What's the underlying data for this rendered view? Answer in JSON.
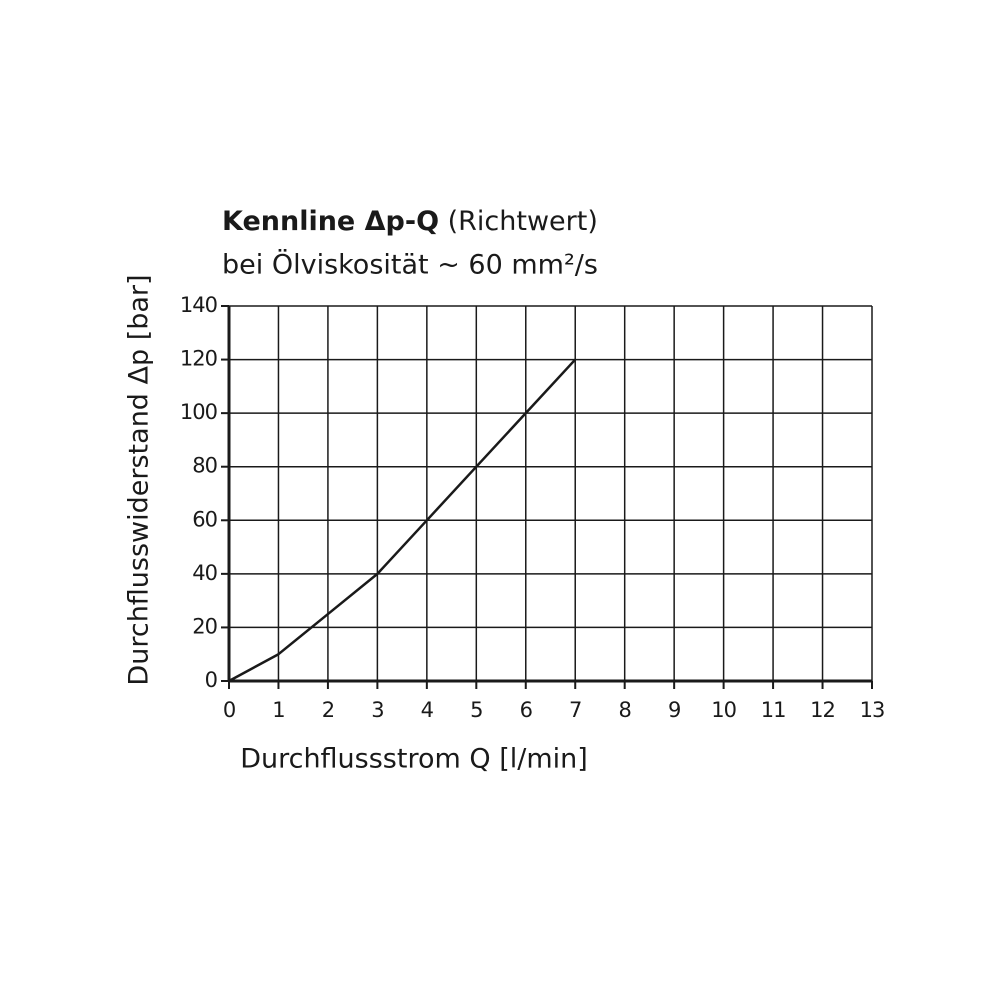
{
  "chart_data": {
    "type": "line",
    "title": "Kennline Δp-Q",
    "title_note": "(Richtwert)",
    "subtitle": "bei Ölviskosität ~ 60 mm²/s",
    "x_label": "Durchflussstrom Q [l/min]",
    "y_label": "Durchflusswiderstand Δp [bar]",
    "x": [
      0,
      1,
      2,
      3,
      4,
      5,
      6,
      7
    ],
    "series": [
      {
        "color": "#1a1a1a",
        "values": [
          0,
          10,
          25,
          40,
          60,
          80,
          100,
          120
        ]
      }
    ],
    "xlim": [
      0,
      13
    ],
    "xticks": [
      0,
      1,
      2,
      3,
      4,
      5,
      6,
      7,
      8,
      9,
      10,
      11,
      12,
      13
    ],
    "ylim": [
      0,
      140
    ],
    "yticks": [
      0,
      20,
      40,
      60,
      80,
      100,
      120,
      140
    ],
    "grid": true
  }
}
